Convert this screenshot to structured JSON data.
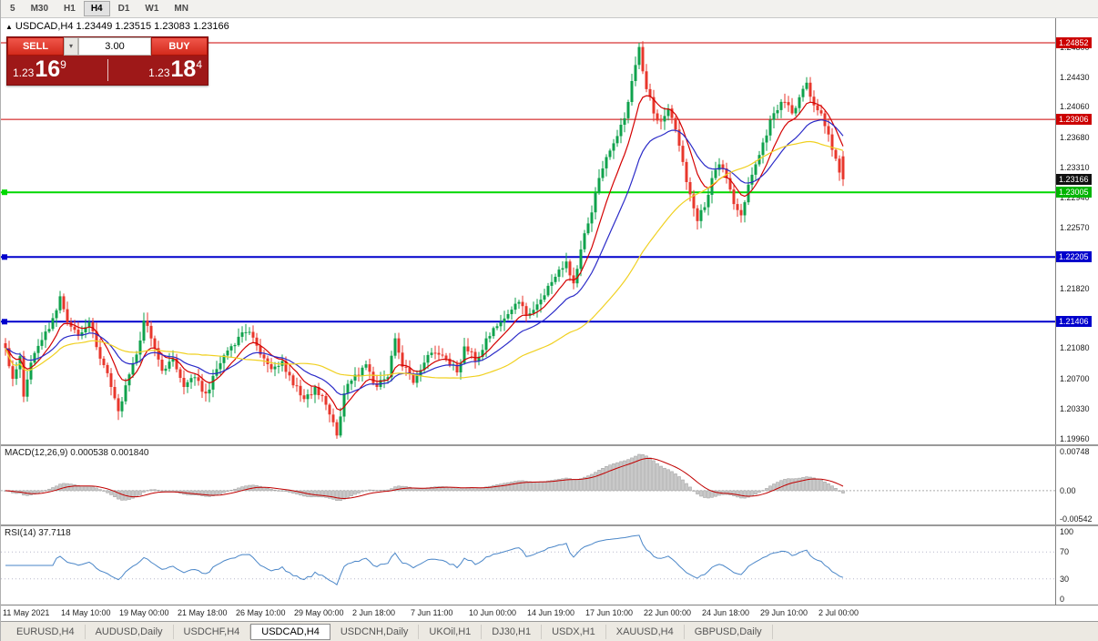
{
  "toolbar": {
    "timeframes": [
      {
        "label": "5",
        "active": false
      },
      {
        "label": "M30",
        "active": false
      },
      {
        "label": "H1",
        "active": false
      },
      {
        "label": "H4",
        "active": true
      },
      {
        "label": "D1",
        "active": false
      },
      {
        "label": "W1",
        "active": false
      },
      {
        "label": "MN",
        "active": false
      }
    ]
  },
  "chart_header": {
    "collapse_icon": "▲",
    "title": "USDCAD,H4 1.23449 1.23515 1.23083 1.23166"
  },
  "trade_panel": {
    "sell_label": "SELL",
    "buy_label": "BUY",
    "dropdown_icon": "▾",
    "lot_value": "3.00",
    "sell_price": {
      "prefix": "1.23",
      "main": "16",
      "pip": "9"
    },
    "buy_price": {
      "prefix": "1.23",
      "main": "18",
      "pip": "4"
    }
  },
  "indicators": {
    "macd_label": "MACD(12,26,9) 0.000538 0.001840",
    "macd_axis": [
      "0.00748",
      "0.00",
      "-0.00542"
    ],
    "rsi_label": "RSI(14) 37.7118",
    "rsi_axis": [
      "100",
      "70",
      "30",
      "0"
    ]
  },
  "price_axis": {
    "ticks": [
      "1.24800",
      "1.24430",
      "1.24060",
      "1.23680",
      "1.23310",
      "1.22940",
      "1.22570",
      "1.21820",
      "1.21080",
      "1.20700",
      "1.20330",
      "1.19960"
    ],
    "badges": [
      {
        "label": "1.24852",
        "price": 1.24852,
        "bg": "#cc0000"
      },
      {
        "label": "1.23906",
        "price": 1.23906,
        "bg": "#cc0000"
      },
      {
        "label": "1.23166",
        "price": 1.23166,
        "bg": "#111111"
      },
      {
        "label": "1.23005",
        "price": 1.23005,
        "bg": "#00b400"
      },
      {
        "label": "1.22205",
        "price": 1.22205,
        "bg": "#0000cc"
      },
      {
        "label": "1.21406",
        "price": 1.21406,
        "bg": "#0000cc"
      }
    ]
  },
  "time_axis": {
    "labels": [
      "11 May 2021",
      "14 May 10:00",
      "19 May 00:00",
      "21 May 18:00",
      "26 May 10:00",
      "29 May 00:00",
      "2 Jun 18:00",
      "7 Jun 11:00",
      "10 Jun 00:00",
      "14 Jun 19:00",
      "17 Jun 10:00",
      "22 Jun 00:00",
      "24 Jun 18:00",
      "29 Jun 10:00",
      "2 Jul 00:00"
    ]
  },
  "tabs": {
    "items": [
      {
        "label": "EURUSD,H4",
        "active": false
      },
      {
        "label": "AUDUSD,Daily",
        "active": false
      },
      {
        "label": "USDCHF,H4",
        "active": false
      },
      {
        "label": "USDCAD,H4",
        "active": true
      },
      {
        "label": "USDCNH,Daily",
        "active": false
      },
      {
        "label": "UKOil,H1",
        "active": false
      },
      {
        "label": "DJ30,H1",
        "active": false
      },
      {
        "label": "USDX,H1",
        "active": false
      },
      {
        "label": "XAUUSD,H4",
        "active": false
      },
      {
        "label": "GBPUSD,Daily",
        "active": false
      }
    ]
  },
  "chart_data": {
    "type": "candlestick",
    "symbol": "USDCAD",
    "timeframe": "H4",
    "visible_range": {
      "start": "11 May 2021",
      "end": "2 Jul 2021 00:00"
    },
    "current_ohlc": {
      "open": 1.23449,
      "high": 1.23515,
      "low": 1.23083,
      "close": 1.23166
    },
    "current_price": 1.23166,
    "price_axis_range": {
      "top": 1.25156,
      "bottom": 1.19891
    },
    "num_candles": 231,
    "colors": {
      "up": "#0fa24c",
      "down": "#e8372c",
      "ma_fast": "#d40000",
      "ma_mid": "#2b2bc8",
      "ma_slow": "#f0d020",
      "macd_hist": "#c9c9c9",
      "macd_hist_border": "#9a9a9a",
      "macd_signal": "#c00000",
      "rsi_line": "#4a86c8",
      "level_red": "#cc0000",
      "level_green": "#00d800",
      "level_blue": "#0000cc"
    },
    "levels": [
      {
        "price": 1.24852,
        "color": "#cc0000",
        "width": 1,
        "handle": false,
        "type": "resistance"
      },
      {
        "price": 1.23906,
        "color": "#cc0000",
        "width": 1,
        "handle": false,
        "type": "resistance"
      },
      {
        "price": 1.23005,
        "color": "#00d800",
        "width": 2,
        "handle": true,
        "type": "support"
      },
      {
        "price": 1.22205,
        "color": "#0000cc",
        "width": 2,
        "handle": true,
        "type": "support"
      },
      {
        "price": 1.21406,
        "color": "#0000cc",
        "width": 2,
        "handle": true,
        "type": "support"
      }
    ],
    "moving_averages": [
      {
        "period": 9,
        "method": "ema",
        "color": "#d40000"
      },
      {
        "period": 21,
        "method": "ema",
        "color": "#2b2bc8"
      },
      {
        "period": 50,
        "method": "sma",
        "color": "#f0d020"
      }
    ],
    "macd": {
      "fast": 12,
      "slow": 26,
      "signal": 9,
      "current_macd": 0.000538,
      "current_signal": 0.00184,
      "axis_max": 0.00748,
      "axis_min": -0.00542
    },
    "rsi": {
      "period": 14,
      "current": 37.7118,
      "levels": [
        70,
        30
      ]
    },
    "close_path_anchors": [
      [
        0,
        1.2108
      ],
      [
        2,
        1.207
      ],
      [
        4,
        1.2098
      ],
      [
        5,
        1.2048
      ],
      [
        7,
        1.209
      ],
      [
        10,
        1.2118
      ],
      [
        13,
        1.2145
      ],
      [
        15,
        1.2172
      ],
      [
        17,
        1.214
      ],
      [
        20,
        1.2123
      ],
      [
        23,
        1.214
      ],
      [
        26,
        1.2095
      ],
      [
        29,
        1.206
      ],
      [
        31,
        1.203
      ],
      [
        33,
        1.2062
      ],
      [
        36,
        1.21
      ],
      [
        38,
        1.2142
      ],
      [
        40,
        1.212
      ],
      [
        43,
        1.208
      ],
      [
        46,
        1.2095
      ],
      [
        49,
        1.206
      ],
      [
        52,
        1.2072
      ],
      [
        55,
        1.2052
      ],
      [
        58,
        1.2082
      ],
      [
        61,
        1.2105
      ],
      [
        64,
        1.2122
      ],
      [
        67,
        1.2128
      ],
      [
        70,
        1.21
      ],
      [
        73,
        1.2082
      ],
      [
        76,
        1.2092
      ],
      [
        79,
        1.2062
      ],
      [
        82,
        1.2045
      ],
      [
        85,
        1.206
      ],
      [
        88,
        1.2038
      ],
      [
        91,
        1.2
      ],
      [
        93,
        1.2052
      ],
      [
        96,
        1.2075
      ],
      [
        99,
        1.2088
      ],
      [
        102,
        1.206
      ],
      [
        105,
        1.2072
      ],
      [
        107,
        1.212
      ],
      [
        109,
        1.2085
      ],
      [
        112,
        1.2065
      ],
      [
        115,
        1.209
      ],
      [
        118,
        1.2102
      ],
      [
        121,
        1.2095
      ],
      [
        124,
        1.2078
      ],
      [
        126,
        1.211
      ],
      [
        129,
        1.2092
      ],
      [
        132,
        1.212
      ],
      [
        135,
        1.2135
      ],
      [
        138,
        1.215
      ],
      [
        141,
        1.2165
      ],
      [
        143,
        1.2148
      ],
      [
        146,
        1.2162
      ],
      [
        149,
        1.2185
      ],
      [
        152,
        1.2205
      ],
      [
        154,
        1.2215
      ],
      [
        156,
        1.2188
      ],
      [
        158,
        1.223
      ],
      [
        160,
        1.2262
      ],
      [
        162,
        1.23
      ],
      [
        164,
        1.233
      ],
      [
        166,
        1.2352
      ],
      [
        168,
        1.237
      ],
      [
        170,
        1.2392
      ],
      [
        172,
        1.2438
      ],
      [
        174,
        1.248
      ],
      [
        175,
        1.245
      ],
      [
        176,
        1.2428
      ],
      [
        178,
        1.2398
      ],
      [
        180,
        1.2388
      ],
      [
        182,
        1.2404
      ],
      [
        184,
        1.2378
      ],
      [
        186,
        1.2338
      ],
      [
        188,
        1.2298
      ],
      [
        190,
        1.2265
      ],
      [
        192,
        1.2282
      ],
      [
        194,
        1.2318
      ],
      [
        196,
        1.2335
      ],
      [
        198,
        1.2318
      ],
      [
        200,
        1.2286
      ],
      [
        202,
        1.2272
      ],
      [
        204,
        1.231
      ],
      [
        206,
        1.2335
      ],
      [
        208,
        1.2362
      ],
      [
        210,
        1.239
      ],
      [
        212,
        1.2402
      ],
      [
        214,
        1.2412
      ],
      [
        216,
        1.2398
      ],
      [
        218,
        1.2418
      ],
      [
        220,
        1.2436
      ],
      [
        222,
        1.2408
      ],
      [
        224,
        1.2398
      ],
      [
        226,
        1.2372
      ],
      [
        228,
        1.2342
      ],
      [
        230,
        1.23166
      ]
    ],
    "forced_candles": [
      {
        "index": 91,
        "low": 1.1996
      },
      {
        "index": 174,
        "high": 1.24852
      },
      {
        "index": 230,
        "open": 1.23449,
        "high": 1.23515,
        "low": 1.23083,
        "close": 1.23166
      }
    ]
  }
}
